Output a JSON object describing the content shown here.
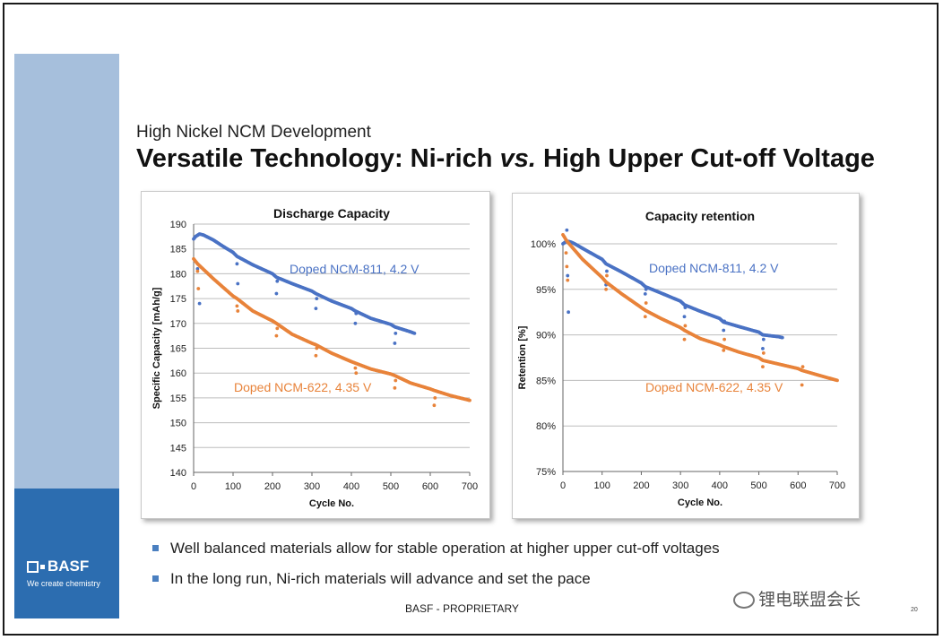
{
  "slide": {
    "subtitle": "High Nickel NCM Development",
    "title_part1": "Versatile Technology: Ni-rich ",
    "title_italic": "vs.",
    "title_part2": " High Upper Cut-off Voltage",
    "bullets": [
      "Well balanced materials allow for stable operation at higher upper cut-off voltages",
      "In the long run, Ni-rich materials will advance and set the pace"
    ],
    "footer": "BASF - PROPRIETARY",
    "page_number": "20",
    "watermark": "锂电联盟会长"
  },
  "brand": {
    "logo_text": "BASF",
    "tagline": "We create chemistry",
    "colors": {
      "sidebar_light": "#a6bfdc",
      "sidebar_dark": "#2c6db0",
      "ncm811": "#4a72c4",
      "ncm622": "#e8833a"
    }
  },
  "chart_data": [
    {
      "type": "scatter",
      "title": "Discharge Capacity",
      "xlabel": "Cycle No.",
      "ylabel": "Specific  Capacity  [mAh/g]",
      "xlim": [
        0,
        700
      ],
      "ylim": [
        140,
        190
      ],
      "xticks": [
        "0",
        "100",
        "200",
        "300",
        "400",
        "500",
        "600",
        "700"
      ],
      "yticks": [
        "140",
        "145",
        "150",
        "155",
        "160",
        "165",
        "170",
        "175",
        "180",
        "185",
        "190"
      ],
      "grid": "horizontal",
      "series": [
        {
          "name": "Doped NCM-811, 4.2 V",
          "color": "#4a72c4",
          "x": [
            0,
            5,
            15,
            25,
            50,
            75,
            100,
            110,
            150,
            200,
            210,
            250,
            300,
            310,
            350,
            400,
            410,
            450,
            500,
            510,
            550,
            560
          ],
          "y": [
            187.0,
            187.5,
            188.0,
            187.8,
            186.8,
            185.5,
            184.3,
            183.5,
            181.8,
            180.0,
            179.3,
            178.0,
            176.5,
            176.0,
            174.5,
            173.0,
            172.5,
            171.0,
            169.8,
            169.3,
            168.3,
            168.0
          ],
          "outliers": [
            [
              10,
              181.0
            ],
            [
              15,
              174.0
            ],
            [
              110,
              182.0
            ],
            [
              112,
              178.0
            ],
            [
              210,
              176.0
            ],
            [
              212,
              178.5
            ],
            [
              310,
              173.0
            ],
            [
              312,
              175.0
            ],
            [
              410,
              170.0
            ],
            [
              412,
              172.0
            ],
            [
              510,
              166.0
            ],
            [
              512,
              168.0
            ]
          ]
        },
        {
          "name": "Doped NCM-622, 4.35 V",
          "color": "#e8833a",
          "x": [
            0,
            10,
            50,
            100,
            110,
            150,
            200,
            210,
            250,
            300,
            310,
            350,
            400,
            410,
            450,
            500,
            510,
            550,
            600,
            610,
            650,
            700
          ],
          "y": [
            183.0,
            182.0,
            179.0,
            175.5,
            175.0,
            172.5,
            170.5,
            170.0,
            167.8,
            166.0,
            165.7,
            164.0,
            162.3,
            162.0,
            160.8,
            159.8,
            159.5,
            158.0,
            156.8,
            156.5,
            155.5,
            154.5
          ],
          "outliers": [
            [
              10,
              180.5
            ],
            [
              12,
              177.0
            ],
            [
              110,
              173.5
            ],
            [
              112,
              172.5
            ],
            [
              210,
              167.5
            ],
            [
              212,
              169.0
            ],
            [
              310,
              163.5
            ],
            [
              312,
              165.0
            ],
            [
              410,
              161.0
            ],
            [
              412,
              160.0
            ],
            [
              510,
              157.0
            ],
            [
              512,
              158.5
            ],
            [
              610,
              153.5
            ],
            [
              612,
              155.0
            ]
          ]
        }
      ]
    },
    {
      "type": "scatter",
      "title": "Capacity retention",
      "xlabel": "Cycle No.",
      "ylabel": "Retention [%]",
      "xlim": [
        0,
        700
      ],
      "ylim": [
        75,
        100
      ],
      "xticks": [
        "0",
        "100",
        "200",
        "300",
        "400",
        "500",
        "600",
        "700"
      ],
      "yticks": [
        "75%",
        "80%",
        "85%",
        "90%",
        "95%",
        "100%"
      ],
      "grid": "horizontal",
      "series": [
        {
          "name": "Doped NCM-811, 4.2 V",
          "color": "#4a72c4",
          "x": [
            0,
            10,
            20,
            30,
            50,
            100,
            110,
            150,
            200,
            210,
            250,
            300,
            310,
            350,
            400,
            410,
            450,
            500,
            510,
            550,
            560
          ],
          "y": [
            100.0,
            100.3,
            100.2,
            100.0,
            99.5,
            98.3,
            97.8,
            96.9,
            95.7,
            95.3,
            94.6,
            93.7,
            93.3,
            92.6,
            91.8,
            91.4,
            90.9,
            90.3,
            90.0,
            89.8,
            89.7
          ],
          "outliers": [
            [
              10,
              101.5
            ],
            [
              12,
              96.5
            ],
            [
              14,
              92.5
            ],
            [
              110,
              95.5
            ],
            [
              112,
              97.0
            ],
            [
              210,
              94.5
            ],
            [
              212,
              95.0
            ],
            [
              310,
              92.0
            ],
            [
              312,
              93.0
            ],
            [
              410,
              90.5
            ],
            [
              412,
              91.5
            ],
            [
              510,
              88.5
            ],
            [
              512,
              89.5
            ]
          ]
        },
        {
          "name": "Doped NCM-622, 4.35 V",
          "color": "#e8833a",
          "x": [
            0,
            10,
            50,
            100,
            110,
            150,
            200,
            210,
            250,
            300,
            310,
            350,
            400,
            410,
            450,
            500,
            510,
            550,
            600,
            610,
            650,
            700
          ],
          "y": [
            101.0,
            100.3,
            98.3,
            96.3,
            95.8,
            94.5,
            93.0,
            92.7,
            91.8,
            90.8,
            90.5,
            89.6,
            88.9,
            88.7,
            88.1,
            87.5,
            87.2,
            86.8,
            86.3,
            86.1,
            85.6,
            85.0
          ],
          "outliers": [
            [
              8,
              99.0
            ],
            [
              10,
              97.5
            ],
            [
              12,
              96.0
            ],
            [
              110,
              95.0
            ],
            [
              112,
              96.5
            ],
            [
              210,
              92.0
            ],
            [
              212,
              93.5
            ],
            [
              310,
              89.5
            ],
            [
              312,
              91.0
            ],
            [
              410,
              88.3
            ],
            [
              412,
              89.5
            ],
            [
              510,
              86.5
            ],
            [
              512,
              88.0
            ],
            [
              610,
              84.5
            ],
            [
              612,
              86.5
            ]
          ]
        }
      ]
    }
  ]
}
